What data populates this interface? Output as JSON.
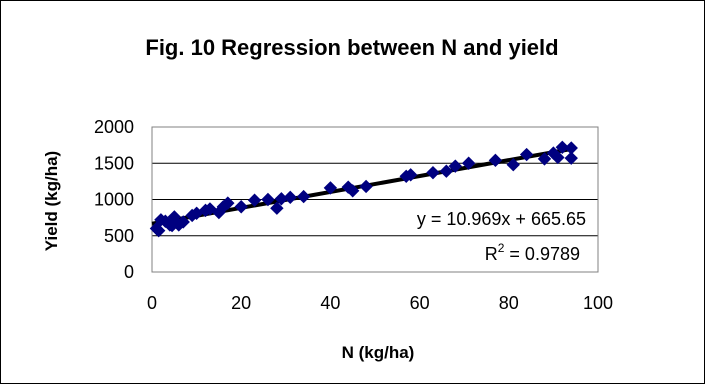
{
  "chart_data": {
    "type": "scatter",
    "title": "Fig. 10 Regression between N and yield",
    "xlabel": "N (kg/ha)",
    "ylabel": "Yield (kg/ha)",
    "xlim": [
      0,
      100
    ],
    "ylim": [
      0,
      2000
    ],
    "xticks": [
      0,
      20,
      40,
      60,
      80,
      100
    ],
    "yticks": [
      0,
      500,
      1000,
      1500,
      2000
    ],
    "grid": "horizontal",
    "legend": "none",
    "marker": "diamond",
    "marker_color": "#000080",
    "trendline_color": "#000000",
    "series": [
      {
        "x": [
          1,
          1.5,
          2,
          3,
          4,
          4.5,
          5,
          6,
          7,
          9,
          10,
          12,
          13,
          15,
          16,
          17,
          20,
          23,
          26,
          28,
          29,
          31,
          34,
          40,
          44,
          45,
          48,
          57,
          58,
          63,
          66,
          68,
          71,
          77,
          81,
          84,
          88,
          90,
          91,
          92,
          94,
          94
        ],
        "y": [
          600,
          570,
          720,
          700,
          650,
          640,
          760,
          650,
          690,
          780,
          810,
          850,
          870,
          820,
          900,
          950,
          900,
          990,
          1000,
          880,
          1010,
          1030,
          1040,
          1160,
          1170,
          1120,
          1180,
          1320,
          1340,
          1370,
          1390,
          1460,
          1500,
          1540,
          1480,
          1620,
          1560,
          1640,
          1580,
          1720,
          1710,
          1570
        ]
      }
    ],
    "trendline": {
      "slope": 10.969,
      "intercept": 665.65,
      "x_range": [
        0,
        94
      ]
    },
    "annotations": {
      "equation": "y = 10.969x + 665.65",
      "r2_base": "R",
      "r2_sup": "2",
      "r2_rest": " = 0.9789"
    }
  }
}
